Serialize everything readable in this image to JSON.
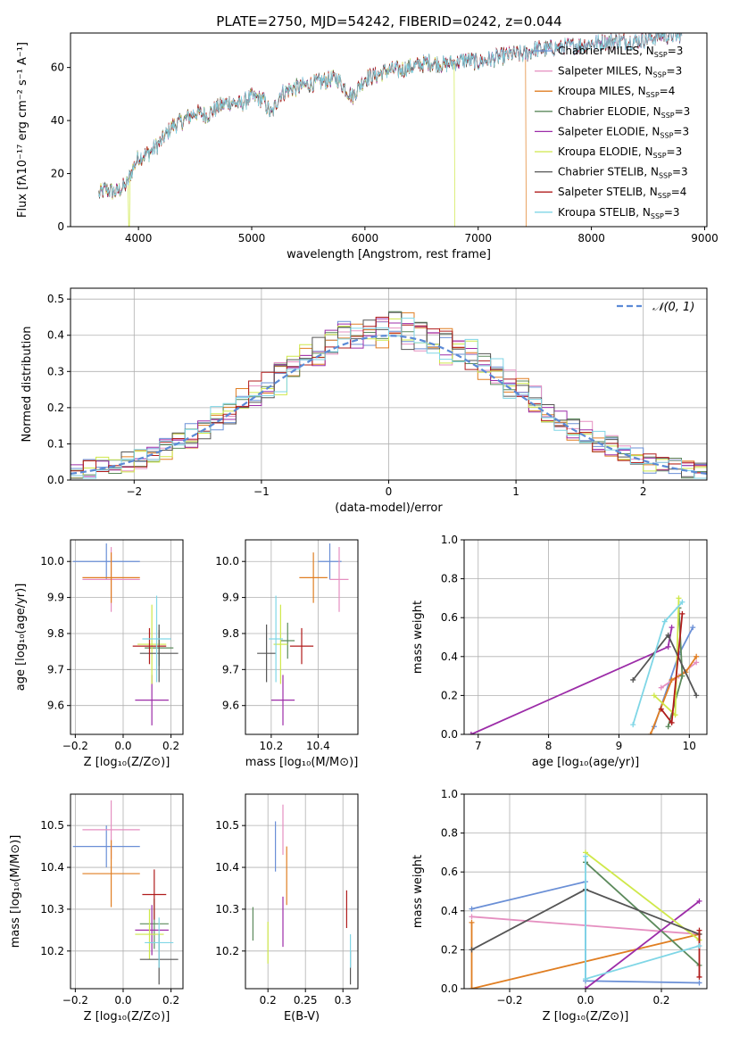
{
  "figure_title": "PLATE=2750, MJD=54242, FIBERID=0242, z=0.044",
  "models": [
    {
      "label": "Chabrier MILES, N",
      "sub": "SSP",
      "tail": "=3",
      "color": "#6a8fd6"
    },
    {
      "label": "Salpeter MILES, N",
      "sub": "SSP",
      "tail": "=3",
      "color": "#e58fc0"
    },
    {
      "label": "Kroupa MILES, N",
      "sub": "SSP",
      "tail": "=4",
      "color": "#e07e22"
    },
    {
      "label": "Chabrier ELODIE, N",
      "sub": "SSP",
      "tail": "=3",
      "color": "#5c8a5c"
    },
    {
      "label": "Salpeter ELODIE, N",
      "sub": "SSP",
      "tail": "=3",
      "color": "#9c2ca8"
    },
    {
      "label": "Kroupa ELODIE, N",
      "sub": "SSP",
      "tail": "=3",
      "color": "#cfe84a"
    },
    {
      "label": "Chabrier STELIB, N",
      "sub": "SSP",
      "tail": "=3",
      "color": "#555555"
    },
    {
      "label": "Salpeter STELIB, N",
      "sub": "SSP",
      "tail": "=4",
      "color": "#b01c1c"
    },
    {
      "label": "Kroupa STELIB, N",
      "sub": "SSP",
      "tail": "=3",
      "color": "#7fd6e6"
    }
  ],
  "chart_data": [
    {
      "id": "spectrum",
      "type": "line",
      "xlabel": "wavelength [Angstrom, rest frame]",
      "ylabel": "Flux [fλ10⁻¹⁷ erg cm⁻² s⁻¹ A⁻¹]",
      "xlim": [
        3400,
        9020
      ],
      "ylim": [
        0,
        73
      ],
      "xticks": [
        4000,
        5000,
        6000,
        7000,
        8000,
        9000
      ],
      "yticks": [
        0,
        20,
        40,
        60
      ],
      "data_x": [
        3650,
        3700,
        3800,
        3900,
        3950,
        4000,
        4100,
        4200,
        4300,
        4400,
        4500,
        4600,
        4700,
        4800,
        4900,
        5000,
        5100,
        5175,
        5250,
        5350,
        5450,
        5550,
        5650,
        5750,
        5890,
        6000,
        6100,
        6200,
        6300,
        6400,
        6563,
        6700,
        6800,
        6900,
        7000,
        7100,
        7200,
        7300,
        7420,
        7500,
        7600,
        7800,
        8000,
        8200,
        8400,
        8600,
        8800
      ],
      "data_y": [
        12,
        14,
        13,
        16,
        22,
        26,
        28,
        32,
        38,
        40,
        43,
        42,
        45,
        47,
        46,
        49,
        48,
        42,
        50,
        52,
        53,
        54,
        55,
        56,
        49,
        56,
        57,
        59,
        59,
        60,
        62,
        61,
        62,
        63,
        62,
        63,
        64,
        65,
        65,
        67,
        67,
        68,
        69,
        70,
        70,
        72,
        72
      ],
      "dropouts": [
        {
          "model": 5,
          "from": 3910,
          "to": 3925,
          "at": 3910
        },
        {
          "model": 5,
          "from": 6790,
          "to": 9000,
          "at": 6790
        },
        {
          "model": 2,
          "from": 7420,
          "to": 9000,
          "at": 7420
        }
      ]
    },
    {
      "id": "residuals",
      "type": "histogram",
      "xlabel": "(data-model)/error",
      "ylabel": "Normed distribution",
      "xlim": [
        -2.5,
        2.5
      ],
      "ylim": [
        0,
        0.53
      ],
      "xticks": [
        -2,
        -1,
        0,
        1,
        2
      ],
      "yticks": [
        0.0,
        0.1,
        0.2,
        0.3,
        0.4,
        0.5
      ],
      "bin_width": 0.1,
      "legend": "𝒩(0, 1)",
      "reference_curve": "normal(0,1)"
    },
    {
      "id": "age_vs_Z",
      "type": "errorbar",
      "xlabel": "Z [log₁₀(Z/Z⊙)]",
      "ylabel": "age  [log₁₀(age/yr)]",
      "xlim": [
        -0.22,
        0.25
      ],
      "ylim": [
        9.52,
        10.06
      ],
      "xticks": [
        -0.2,
        0.0,
        0.2
      ],
      "yticks": [
        9.6,
        9.7,
        9.8,
        9.9,
        10.0
      ],
      "points": [
        {
          "x": -0.07,
          "y": 10.0,
          "xerr": 0.14,
          "yerr": 0.05
        },
        {
          "x": -0.05,
          "y": 9.95,
          "xerr": 0.12,
          "yerr": 0.09
        },
        {
          "x": -0.05,
          "y": 9.955,
          "xerr": 0.12,
          "yerr": 0.07
        },
        {
          "x": 0.15,
          "y": 9.76,
          "xerr": 0.06,
          "yerr": 0.05
        },
        {
          "x": 0.12,
          "y": 9.615,
          "xerr": 0.07,
          "yerr": 0.07
        },
        {
          "x": 0.12,
          "y": 9.77,
          "xerr": 0.06,
          "yerr": 0.11
        },
        {
          "x": 0.15,
          "y": 9.745,
          "xerr": 0.08,
          "yerr": 0.08
        },
        {
          "x": 0.11,
          "y": 9.765,
          "xerr": 0.07,
          "yerr": 0.05
        },
        {
          "x": 0.14,
          "y": 9.785,
          "xerr": 0.06,
          "yerr": 0.12
        }
      ]
    },
    {
      "id": "age_vs_mass",
      "type": "errorbar",
      "xlabel": "mass [log₁₀(M/M⊙)]",
      "ylabel": "",
      "xlim": [
        10.09,
        10.57
      ],
      "ylim": [
        9.52,
        10.06
      ],
      "xticks": [
        10.2,
        10.4
      ],
      "yticks": [
        9.6,
        9.7,
        9.8,
        9.9,
        10.0
      ],
      "points": [
        {
          "x": 10.45,
          "y": 10.0,
          "xerr": 0.05,
          "yerr": 0.05
        },
        {
          "x": 10.49,
          "y": 9.95,
          "xerr": 0.04,
          "yerr": 0.09
        },
        {
          "x": 10.38,
          "y": 9.955,
          "xerr": 0.06,
          "yerr": 0.07
        },
        {
          "x": 10.27,
          "y": 9.78,
          "xerr": 0.03,
          "yerr": 0.05
        },
        {
          "x": 10.25,
          "y": 9.615,
          "xerr": 0.05,
          "yerr": 0.07
        },
        {
          "x": 10.24,
          "y": 9.77,
          "xerr": 0.03,
          "yerr": 0.11
        },
        {
          "x": 10.18,
          "y": 9.745,
          "xerr": 0.04,
          "yerr": 0.08
        },
        {
          "x": 10.33,
          "y": 9.765,
          "xerr": 0.05,
          "yerr": 0.05
        },
        {
          "x": 10.22,
          "y": 9.785,
          "xerr": 0.03,
          "yerr": 0.12
        }
      ]
    },
    {
      "id": "weights_vs_age",
      "type": "line",
      "xlabel": "age  [log₁₀(age/yr)]",
      "ylabel": "mass weight",
      "xlim": [
        6.8,
        10.25
      ],
      "ylim": [
        0,
        1.0
      ],
      "xticks": [
        7,
        8,
        9,
        10
      ],
      "yticks": [
        0.0,
        0.2,
        0.4,
        0.6,
        0.8,
        1.0
      ],
      "series": [
        {
          "x": [
            9.5,
            9.85,
            10.05
          ],
          "y": [
            0.04,
            0.41,
            0.55
          ]
        },
        {
          "x": [
            9.6,
            9.85,
            10.1
          ],
          "y": [
            0.24,
            0.3,
            0.37
          ]
        },
        {
          "x": [
            9.45,
            9.75,
            9.95,
            10.1
          ],
          "y": [
            0.0,
            0.28,
            0.32,
            0.4
          ]
        },
        {
          "x": [
            9.7,
            9.9,
            9.85
          ],
          "y": [
            0.04,
            0.3,
            0.65
          ]
        },
        {
          "x": [
            6.9,
            9.7,
            9.75
          ],
          "y": [
            0.0,
            0.45,
            0.55
          ]
        },
        {
          "x": [
            9.5,
            9.8,
            9.85
          ],
          "y": [
            0.2,
            0.1,
            0.7
          ]
        },
        {
          "x": [
            9.2,
            9.7,
            10.1
          ],
          "y": [
            0.28,
            0.51,
            0.2
          ]
        },
        {
          "x": [
            9.6,
            9.75,
            9.9
          ],
          "y": [
            0.13,
            0.06,
            0.62
          ]
        },
        {
          "x": [
            9.2,
            9.65,
            9.9
          ],
          "y": [
            0.05,
            0.58,
            0.68
          ]
        }
      ]
    },
    {
      "id": "mass_vs_Z",
      "type": "errorbar",
      "xlabel": "Z [log₁₀(Z/Z⊙)]",
      "ylabel": "mass [log₁₀(M/M⊙)]",
      "xlim": [
        -0.22,
        0.25
      ],
      "ylim": [
        10.11,
        10.575
      ],
      "xticks": [
        -0.2,
        0.0,
        0.2
      ],
      "yticks": [
        10.2,
        10.3,
        10.4,
        10.5
      ],
      "points": [
        {
          "x": -0.07,
          "y": 10.45,
          "xerr": 0.14,
          "yerr": 0.05
        },
        {
          "x": -0.05,
          "y": 10.49,
          "xerr": 0.12,
          "yerr": 0.07
        },
        {
          "x": -0.05,
          "y": 10.385,
          "xerr": 0.12,
          "yerr": 0.08
        },
        {
          "x": 0.13,
          "y": 10.265,
          "xerr": 0.06,
          "yerr": 0.06
        },
        {
          "x": 0.12,
          "y": 10.25,
          "xerr": 0.07,
          "yerr": 0.06
        },
        {
          "x": 0.11,
          "y": 10.24,
          "xerr": 0.06,
          "yerr": 0.06
        },
        {
          "x": 0.15,
          "y": 10.18,
          "xerr": 0.08,
          "yerr": 0.06
        },
        {
          "x": 0.13,
          "y": 10.335,
          "xerr": 0.05,
          "yerr": 0.06
        },
        {
          "x": 0.15,
          "y": 10.22,
          "xerr": 0.06,
          "yerr": 0.06
        }
      ]
    },
    {
      "id": "mass_vs_ebv",
      "type": "errorbar",
      "xlabel": "E(B-V)",
      "ylabel": "",
      "xlim": [
        0.17,
        0.32
      ],
      "ylim": [
        10.11,
        10.575
      ],
      "xticks": [
        0.2,
        0.25,
        0.3
      ],
      "yticks": [
        10.2,
        10.3,
        10.4,
        10.5
      ],
      "points": [
        {
          "x": 0.21,
          "y": 10.45,
          "xerr": 0,
          "yerr": 0.06
        },
        {
          "x": 0.22,
          "y": 10.49,
          "xerr": 0,
          "yerr": 0.06
        },
        {
          "x": 0.225,
          "y": 10.38,
          "xerr": 0,
          "yerr": 0.07
        },
        {
          "x": 0.18,
          "y": 10.265,
          "xerr": 0,
          "yerr": 0.04
        },
        {
          "x": 0.22,
          "y": 10.27,
          "xerr": 0,
          "yerr": 0.06
        },
        {
          "x": 0.2,
          "y": 10.22,
          "xerr": 0,
          "yerr": 0.05
        },
        {
          "x": 0.31,
          "y": 10.16,
          "xerr": 0,
          "yerr": 0.04
        },
        {
          "x": 0.305,
          "y": 10.3,
          "xerr": 0,
          "yerr": 0.045
        },
        {
          "x": 0.31,
          "y": 10.2,
          "xerr": 0,
          "yerr": 0.04
        }
      ]
    },
    {
      "id": "weights_vs_Z",
      "type": "line",
      "xlabel": "Z [log₁₀(Z/Z⊙)]",
      "ylabel": "mass weight",
      "xlim": [
        -0.32,
        0.32
      ],
      "ylim": [
        0,
        1.0
      ],
      "xticks": [
        -0.2,
        0.0,
        0.2
      ],
      "yticks": [
        0.0,
        0.2,
        0.4,
        0.6,
        0.8,
        1.0
      ],
      "series": [
        {
          "x": [
            -0.3,
            0.0,
            0.0,
            0.3
          ],
          "y": [
            0.41,
            0.55,
            0.04,
            0.03
          ]
        },
        {
          "x": [
            -0.3,
            0.3
          ],
          "y": [
            0.37,
            0.28
          ]
        },
        {
          "x": [
            -0.3,
            -0.3,
            0.3,
            0.3
          ],
          "y": [
            0.34,
            0.0,
            0.28,
            0.25
          ]
        },
        {
          "x": [
            0.0,
            0.3
          ],
          "y": [
            0.65,
            0.12
          ]
        },
        {
          "x": [
            0.0,
            0.3
          ],
          "y": [
            0.0,
            0.45
          ]
        },
        {
          "x": [
            0.0,
            0.3
          ],
          "y": [
            0.7,
            0.25
          ]
        },
        {
          "x": [
            -0.3,
            0.0,
            0.3
          ],
          "y": [
            0.2,
            0.51,
            0.28
          ]
        },
        {
          "x": [
            0.3,
            0.3
          ],
          "y": [
            0.06,
            0.3
          ]
        },
        {
          "x": [
            0.0,
            0.0,
            0.3
          ],
          "y": [
            0.68,
            0.05,
            0.22
          ]
        }
      ]
    }
  ]
}
